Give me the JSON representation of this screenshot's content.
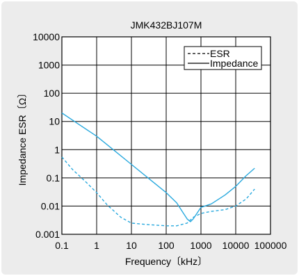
{
  "colors": {
    "page_background": "#ffffff",
    "figure_background": "#ececec",
    "plot_background": "#ffffff",
    "series": "#29a9de",
    "grid": "#000000"
  },
  "chart_data": {
    "type": "line",
    "title": "JMK432BJ107M",
    "xlabel": "Frequency〔kHz〕",
    "ylabel": "Impedance ESR〔Ω〕",
    "x_scale": "log",
    "y_scale": "log",
    "xlim": [
      0.1,
      100000
    ],
    "ylim": [
      0.001,
      10000
    ],
    "grid": true,
    "legend_position": "top-right",
    "x_ticks": [
      "0.1",
      "1",
      "10",
      "100",
      "1000",
      "10000",
      "100000"
    ],
    "y_ticks": [
      "0.001",
      "0.01",
      "0.1",
      "1",
      "10",
      "100",
      "1000",
      "10000"
    ],
    "series": [
      {
        "name": "ESR",
        "style": "dashed",
        "x": [
          0.1,
          0.2,
          0.5,
          1,
          2,
          5,
          10,
          30,
          100,
          200,
          400,
          600,
          1000,
          2000,
          5000,
          10000,
          20000,
          35000
        ],
        "y": [
          0.55,
          0.2,
          0.07,
          0.03,
          0.011,
          0.004,
          0.0025,
          0.0022,
          0.002,
          0.002,
          0.0025,
          0.004,
          0.0055,
          0.0065,
          0.0075,
          0.01,
          0.018,
          0.04
        ]
      },
      {
        "name": "Impedance",
        "style": "solid",
        "x": [
          0.1,
          0.3,
          1,
          3,
          10,
          30,
          100,
          200,
          300,
          400,
          500,
          600,
          800,
          1000,
          2000,
          5000,
          10000,
          20000,
          35000
        ],
        "y": [
          20,
          8,
          3,
          1,
          0.3,
          0.1,
          0.03,
          0.013,
          0.006,
          0.0035,
          0.0028,
          0.0035,
          0.006,
          0.009,
          0.012,
          0.025,
          0.05,
          0.12,
          0.22
        ]
      }
    ]
  }
}
